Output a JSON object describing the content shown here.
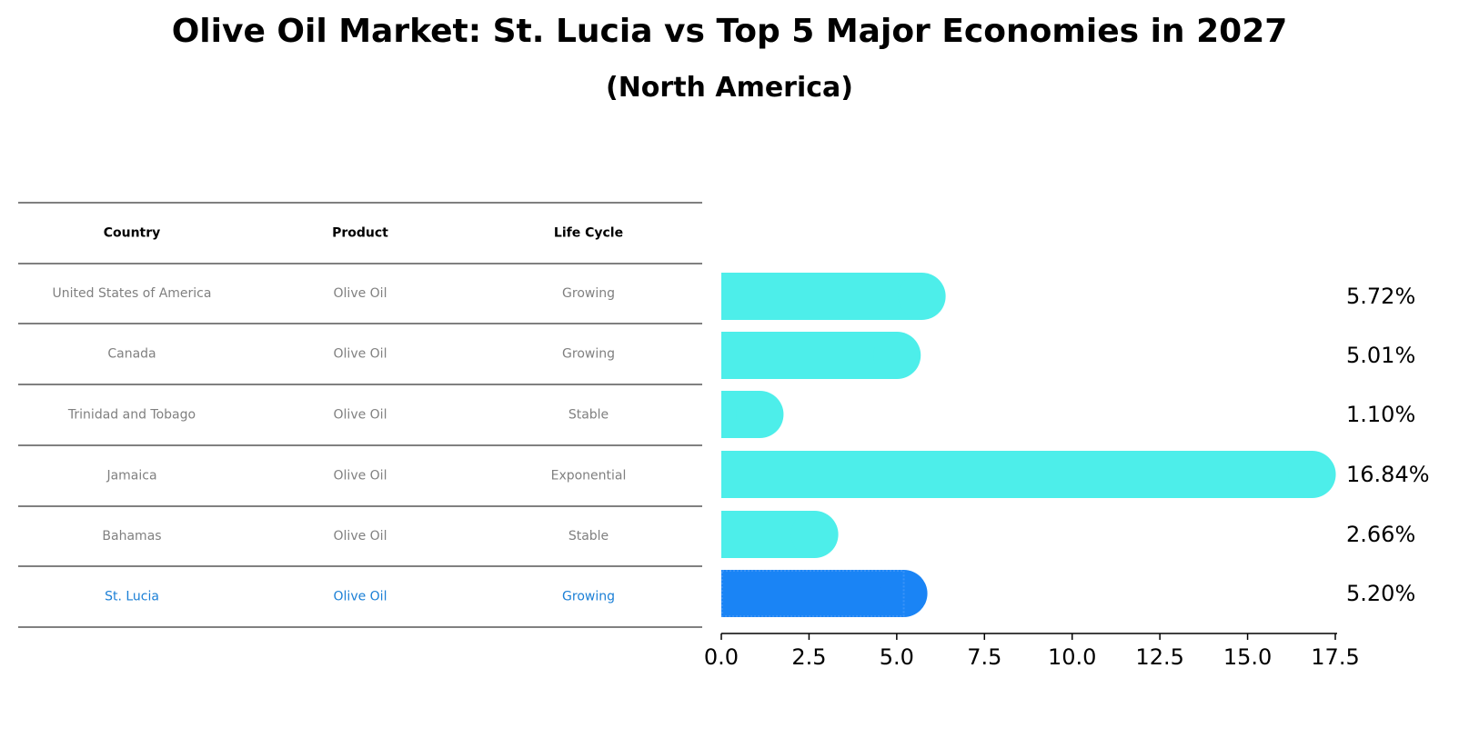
{
  "title": "Olive Oil Market: St. Lucia vs Top 5 Major Economies in 2027",
  "subtitle": "(North America)",
  "table": {
    "headers": [
      "Country",
      "Product",
      "Life Cycle"
    ],
    "rows": [
      [
        "United States of America",
        "Olive Oil",
        "Growing"
      ],
      [
        "Canada",
        "Olive Oil",
        "Growing"
      ],
      [
        "Trinidad and Tobago",
        "Olive Oil",
        "Stable"
      ],
      [
        "Jamaica",
        "Olive Oil",
        "Exponential"
      ],
      [
        "Bahamas",
        "Olive Oil",
        "Stable"
      ],
      [
        "St. Lucia",
        "Olive Oil",
        "Growing"
      ]
    ],
    "highlight_row": 5
  },
  "colors": {
    "bar": "#4deeea",
    "highlight_bar": "#1a84f5",
    "text_gray": "#808080",
    "highlight_text": "#1a7fd6"
  },
  "chart_data": {
    "type": "bar",
    "orientation": "horizontal",
    "categories": [
      "United States of America",
      "Canada",
      "Trinidad and Tobago",
      "Jamaica",
      "Bahamas",
      "St. Lucia"
    ],
    "values": [
      5.72,
      5.01,
      1.1,
      16.84,
      2.66,
      5.2
    ],
    "labels": [
      "5.72%",
      "5.01%",
      "1.10%",
      "16.84%",
      "2.66%",
      "5.20%"
    ],
    "highlight_index": 5,
    "xlim": [
      0,
      17.5
    ],
    "xticks": [
      0,
      2.5,
      5,
      7.5,
      10,
      12.5,
      15,
      17.5
    ],
    "xtick_labels": [
      "0.0",
      "2.5",
      "5.0",
      "7.5",
      "10.0",
      "12.5",
      "15.0",
      "17.5"
    ],
    "xlabel": "",
    "ylabel": ""
  }
}
